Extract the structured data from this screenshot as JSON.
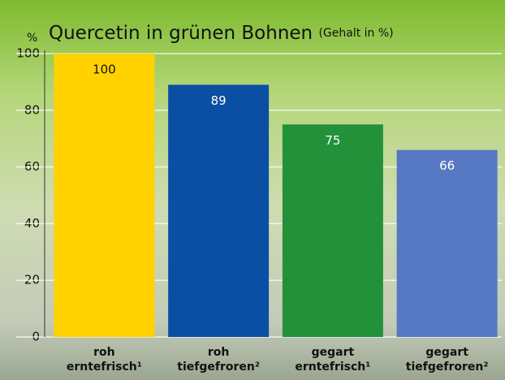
{
  "chart_data": {
    "type": "bar",
    "title": "Quercetin in grünen Bohnen",
    "subtitle": "(Gehalt in %)",
    "y_label": "%",
    "categories": [
      [
        "roh",
        "erntefrisch¹"
      ],
      [
        "roh",
        "tiefgefroren²"
      ],
      [
        "gegart",
        "erntefrisch¹"
      ],
      [
        "gegart",
        "tiefgefroren²"
      ]
    ],
    "values": [
      100,
      89,
      75,
      66
    ],
    "colors": [
      "#ffd200",
      "#0a4fa3",
      "#23913a",
      "#5678c2"
    ],
    "ylim": [
      0,
      100
    ],
    "yticks": [
      0,
      20,
      40,
      60,
      80,
      100
    ],
    "grid": true
  }
}
